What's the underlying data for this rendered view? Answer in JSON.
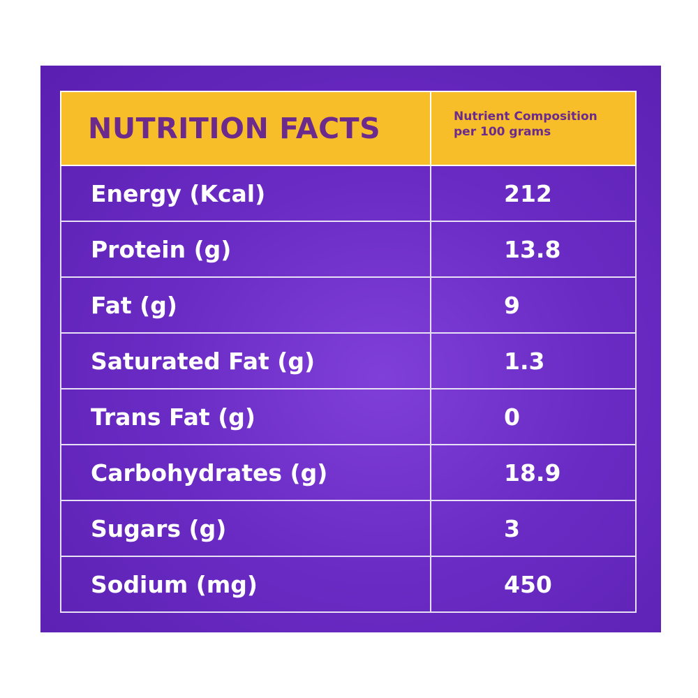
{
  "header": {
    "title": "NUTRITION FACTS",
    "subtitle_line1": "Nutrient Composition",
    "subtitle_line2": "per 100 grams"
  },
  "rows": [
    {
      "nutrient": "Energy (Kcal)",
      "value": "212"
    },
    {
      "nutrient": "Protein (g)",
      "value": "13.8"
    },
    {
      "nutrient": "Fat (g)",
      "value": "9"
    },
    {
      "nutrient": "Saturated Fat (g)",
      "value": "1.3"
    },
    {
      "nutrient": "Trans Fat (g)",
      "value": "0"
    },
    {
      "nutrient": "Carbohydrates (g)",
      "value": "18.9"
    },
    {
      "nutrient": "Sugars (g)",
      "value": "3"
    },
    {
      "nutrient": "Sodium (mg)",
      "value": "450"
    }
  ],
  "colors": {
    "panel": "#6a2bc4",
    "header_fill": "#f7be2a",
    "header_text": "#6b2a8c",
    "row_text": "#ffffff",
    "border": "#e8e0f5"
  }
}
